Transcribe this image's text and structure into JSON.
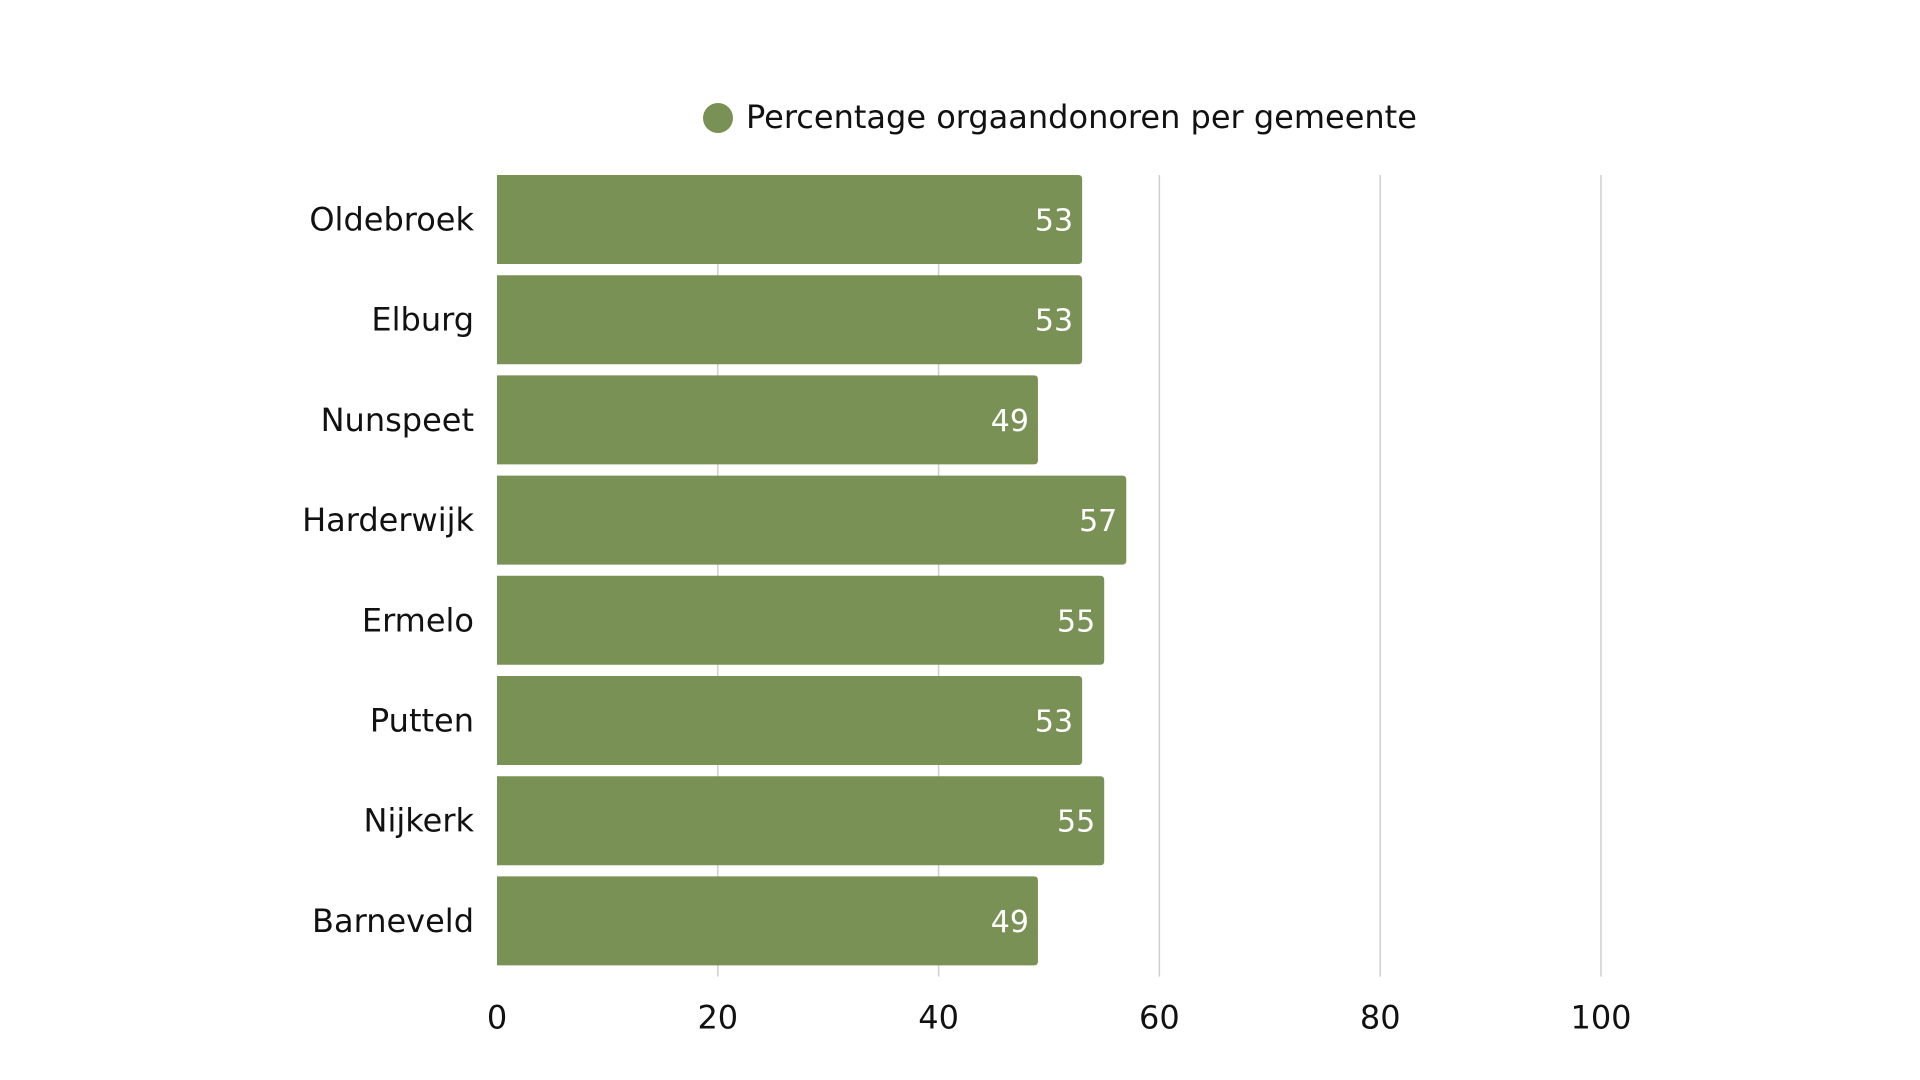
{
  "chart_data": {
    "type": "bar",
    "orientation": "horizontal",
    "categories": [
      "Oldebroek",
      "Elburg",
      "Nunspeet",
      "Harderwijk",
      "Ermelo",
      "Putten",
      "Nijkerk",
      "Barneveld"
    ],
    "series": [
      {
        "name": "Percentage orgaandonoren per gemeente",
        "values": [
          53,
          53,
          49,
          57,
          55,
          53,
          55,
          49
        ],
        "color": "#7a9155"
      }
    ],
    "data_labels": [
      "53",
      "53",
      "49",
      "57",
      "55",
      "53",
      "55",
      "49"
    ],
    "xlim": [
      0,
      100
    ],
    "xticks": [
      0,
      20,
      40,
      60,
      80,
      100
    ],
    "xtick_labels": [
      "0",
      "20",
      "40",
      "60",
      "80",
      "100"
    ],
    "grid": "vertical",
    "legend_position": "top-center",
    "label_color": "#ffffff",
    "text_color": "#111111",
    "grid_color": "#cfcfcf"
  }
}
